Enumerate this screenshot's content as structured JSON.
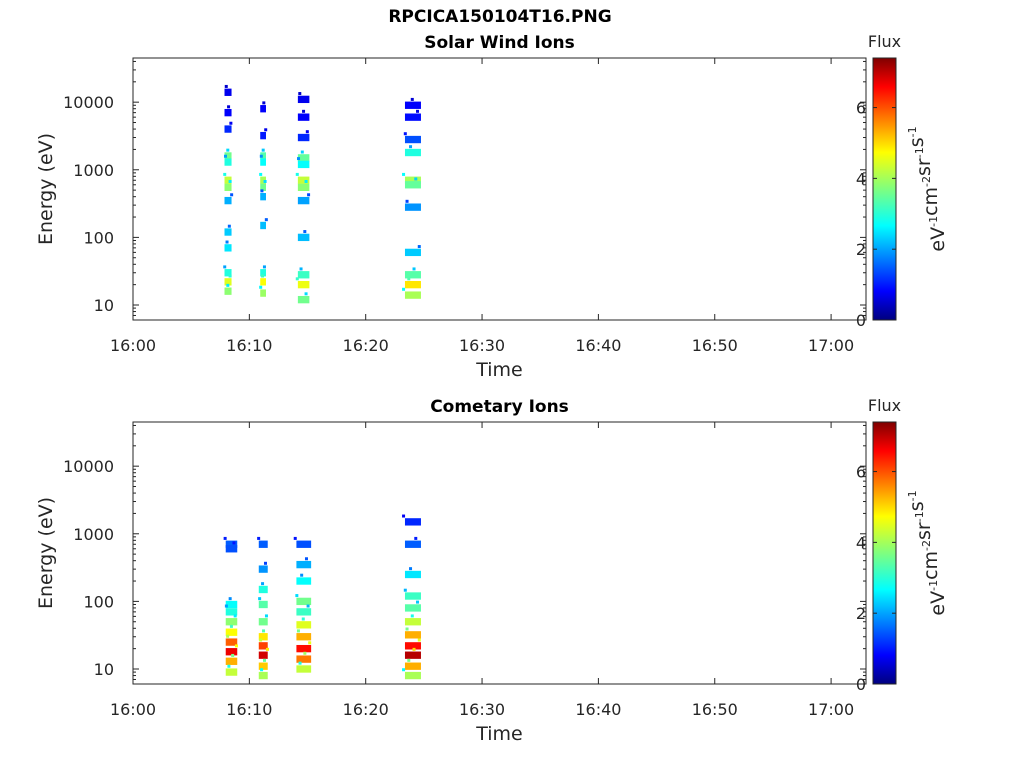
{
  "figure": {
    "title": "RPCICA150104T16.PNG"
  },
  "colormap": [
    "#00007f",
    "#0000ff",
    "#007fff",
    "#00ffff",
    "#7fff7f",
    "#ffff00",
    "#ff7f00",
    "#ff0000",
    "#7f0000"
  ],
  "chart_data": [
    {
      "type": "heatmap",
      "title": "Solar Wind Ions",
      "xlabel": "Time",
      "ylabel": "Energy (eV)",
      "x_ticks": [
        "16:00",
        "16:10",
        "16:20",
        "16:30",
        "16:40",
        "16:50",
        "17:00"
      ],
      "x_range_min": [
        0,
        63
      ],
      "y_ticks": [
        10,
        100,
        1000,
        10000
      ],
      "y_range_eV": [
        6,
        45000
      ],
      "y_scale": "log",
      "colorbar": {
        "label": "Flux",
        "units": "eV^-1 cm^-2 sr^-1 s^-1",
        "ticks": [
          0,
          2,
          4,
          6
        ],
        "range": [
          0,
          7.4
        ]
      },
      "bursts": [
        {
          "time_min": [
            7.7,
            8.8
          ],
          "cells": [
            {
              "e": 700,
              "f": 4.2
            },
            {
              "e": 550,
              "f": 3.8
            },
            {
              "e": 1600,
              "f": 3.6
            },
            {
              "e": 1300,
              "f": 3.0
            },
            {
              "e": 4000,
              "f": 1.2
            },
            {
              "e": 7000,
              "f": 0.9
            },
            {
              "e": 14000,
              "f": 0.8
            },
            {
              "e": 350,
              "f": 2.2
            },
            {
              "e": 120,
              "f": 2.4
            },
            {
              "e": 70,
              "f": 2.6
            },
            {
              "e": 30,
              "f": 3.0
            },
            {
              "e": 22,
              "f": 4.4
            },
            {
              "e": 16,
              "f": 3.8
            }
          ]
        },
        {
          "time_min": [
            10.8,
            11.7
          ],
          "cells": [
            {
              "e": 700,
              "f": 4.0
            },
            {
              "e": 550,
              "f": 3.6
            },
            {
              "e": 1600,
              "f": 3.4
            },
            {
              "e": 1300,
              "f": 2.8
            },
            {
              "e": 3200,
              "f": 1.1
            },
            {
              "e": 8000,
              "f": 0.9
            },
            {
              "e": 400,
              "f": 2.2
            },
            {
              "e": 150,
              "f": 2.3
            },
            {
              "e": 30,
              "f": 3.0
            },
            {
              "e": 22,
              "f": 4.6
            },
            {
              "e": 15,
              "f": 3.9
            }
          ]
        },
        {
          "time_min": [
            13.9,
            15.7
          ],
          "cells": [
            {
              "e": 700,
              "f": 4.2
            },
            {
              "e": 550,
              "f": 3.8
            },
            {
              "e": 1500,
              "f": 3.5
            },
            {
              "e": 1200,
              "f": 2.8
            },
            {
              "e": 3000,
              "f": 1.2
            },
            {
              "e": 6000,
              "f": 0.9
            },
            {
              "e": 11000,
              "f": 0.8
            },
            {
              "e": 350,
              "f": 2.1
            },
            {
              "e": 100,
              "f": 2.3
            },
            {
              "e": 28,
              "f": 3.2
            },
            {
              "e": 20,
              "f": 4.5
            },
            {
              "e": 12,
              "f": 3.6
            }
          ]
        },
        {
          "time_min": [
            23.0,
            25.5
          ],
          "cells": [
            {
              "e": 700,
              "f": 4.0
            },
            {
              "e": 600,
              "f": 3.5
            },
            {
              "e": 1800,
              "f": 3.0
            },
            {
              "e": 2800,
              "f": 1.5
            },
            {
              "e": 6000,
              "f": 1.0
            },
            {
              "e": 9000,
              "f": 0.9
            },
            {
              "e": 280,
              "f": 2.0
            },
            {
              "e": 60,
              "f": 2.4
            },
            {
              "e": 28,
              "f": 3.4
            },
            {
              "e": 20,
              "f": 4.8
            },
            {
              "e": 14,
              "f": 4.0
            }
          ]
        }
      ]
    },
    {
      "type": "heatmap",
      "title": "Cometary Ions",
      "xlabel": "Time",
      "ylabel": "Energy (eV)",
      "x_ticks": [
        "16:00",
        "16:10",
        "16:20",
        "16:30",
        "16:40",
        "16:50",
        "17:00"
      ],
      "x_range_min": [
        0,
        63
      ],
      "y_ticks": [
        10,
        100,
        1000,
        10000
      ],
      "y_range_eV": [
        6,
        45000
      ],
      "y_scale": "log",
      "colorbar": {
        "label": "Flux",
        "units": "eV^-1 cm^-2 sr^-1 s^-1",
        "ticks": [
          0,
          2,
          4,
          6
        ],
        "range": [
          0,
          7.4
        ]
      },
      "bursts": [
        {
          "time_min": [
            7.7,
            9.5
          ],
          "cells": [
            {
              "e": 700,
              "f": 1.6
            },
            {
              "e": 600,
              "f": 1.5
            },
            {
              "e": 90,
              "f": 2.8
            },
            {
              "e": 70,
              "f": 3.0
            },
            {
              "e": 50,
              "f": 3.8
            },
            {
              "e": 35,
              "f": 4.6
            },
            {
              "e": 25,
              "f": 5.8
            },
            {
              "e": 18,
              "f": 6.6
            },
            {
              "e": 13,
              "f": 5.2
            },
            {
              "e": 9,
              "f": 4.2
            }
          ]
        },
        {
          "time_min": [
            10.6,
            12.0
          ],
          "cells": [
            {
              "e": 700,
              "f": 1.6
            },
            {
              "e": 300,
              "f": 2.0
            },
            {
              "e": 150,
              "f": 3.0
            },
            {
              "e": 90,
              "f": 3.4
            },
            {
              "e": 50,
              "f": 3.6
            },
            {
              "e": 30,
              "f": 4.8
            },
            {
              "e": 22,
              "f": 6.0
            },
            {
              "e": 16,
              "f": 6.8
            },
            {
              "e": 11,
              "f": 5.0
            },
            {
              "e": 8,
              "f": 4.0
            }
          ]
        },
        {
          "time_min": [
            13.7,
            16.0
          ],
          "cells": [
            {
              "e": 700,
              "f": 1.5
            },
            {
              "e": 350,
              "f": 2.2
            },
            {
              "e": 200,
              "f": 2.8
            },
            {
              "e": 100,
              "f": 3.6
            },
            {
              "e": 70,
              "f": 3.2
            },
            {
              "e": 45,
              "f": 4.4
            },
            {
              "e": 30,
              "f": 5.2
            },
            {
              "e": 20,
              "f": 6.4
            },
            {
              "e": 14,
              "f": 5.6
            },
            {
              "e": 10,
              "f": 4.2
            }
          ]
        },
        {
          "time_min": [
            23.0,
            25.5
          ],
          "cells": [
            {
              "e": 1500,
              "f": 1.2
            },
            {
              "e": 700,
              "f": 1.6
            },
            {
              "e": 250,
              "f": 2.6
            },
            {
              "e": 120,
              "f": 3.2
            },
            {
              "e": 80,
              "f": 3.4
            },
            {
              "e": 50,
              "f": 4.2
            },
            {
              "e": 32,
              "f": 5.2
            },
            {
              "e": 22,
              "f": 6.4
            },
            {
              "e": 16,
              "f": 7.0
            },
            {
              "e": 11,
              "f": 5.2
            },
            {
              "e": 8,
              "f": 4.0
            }
          ]
        }
      ]
    }
  ]
}
